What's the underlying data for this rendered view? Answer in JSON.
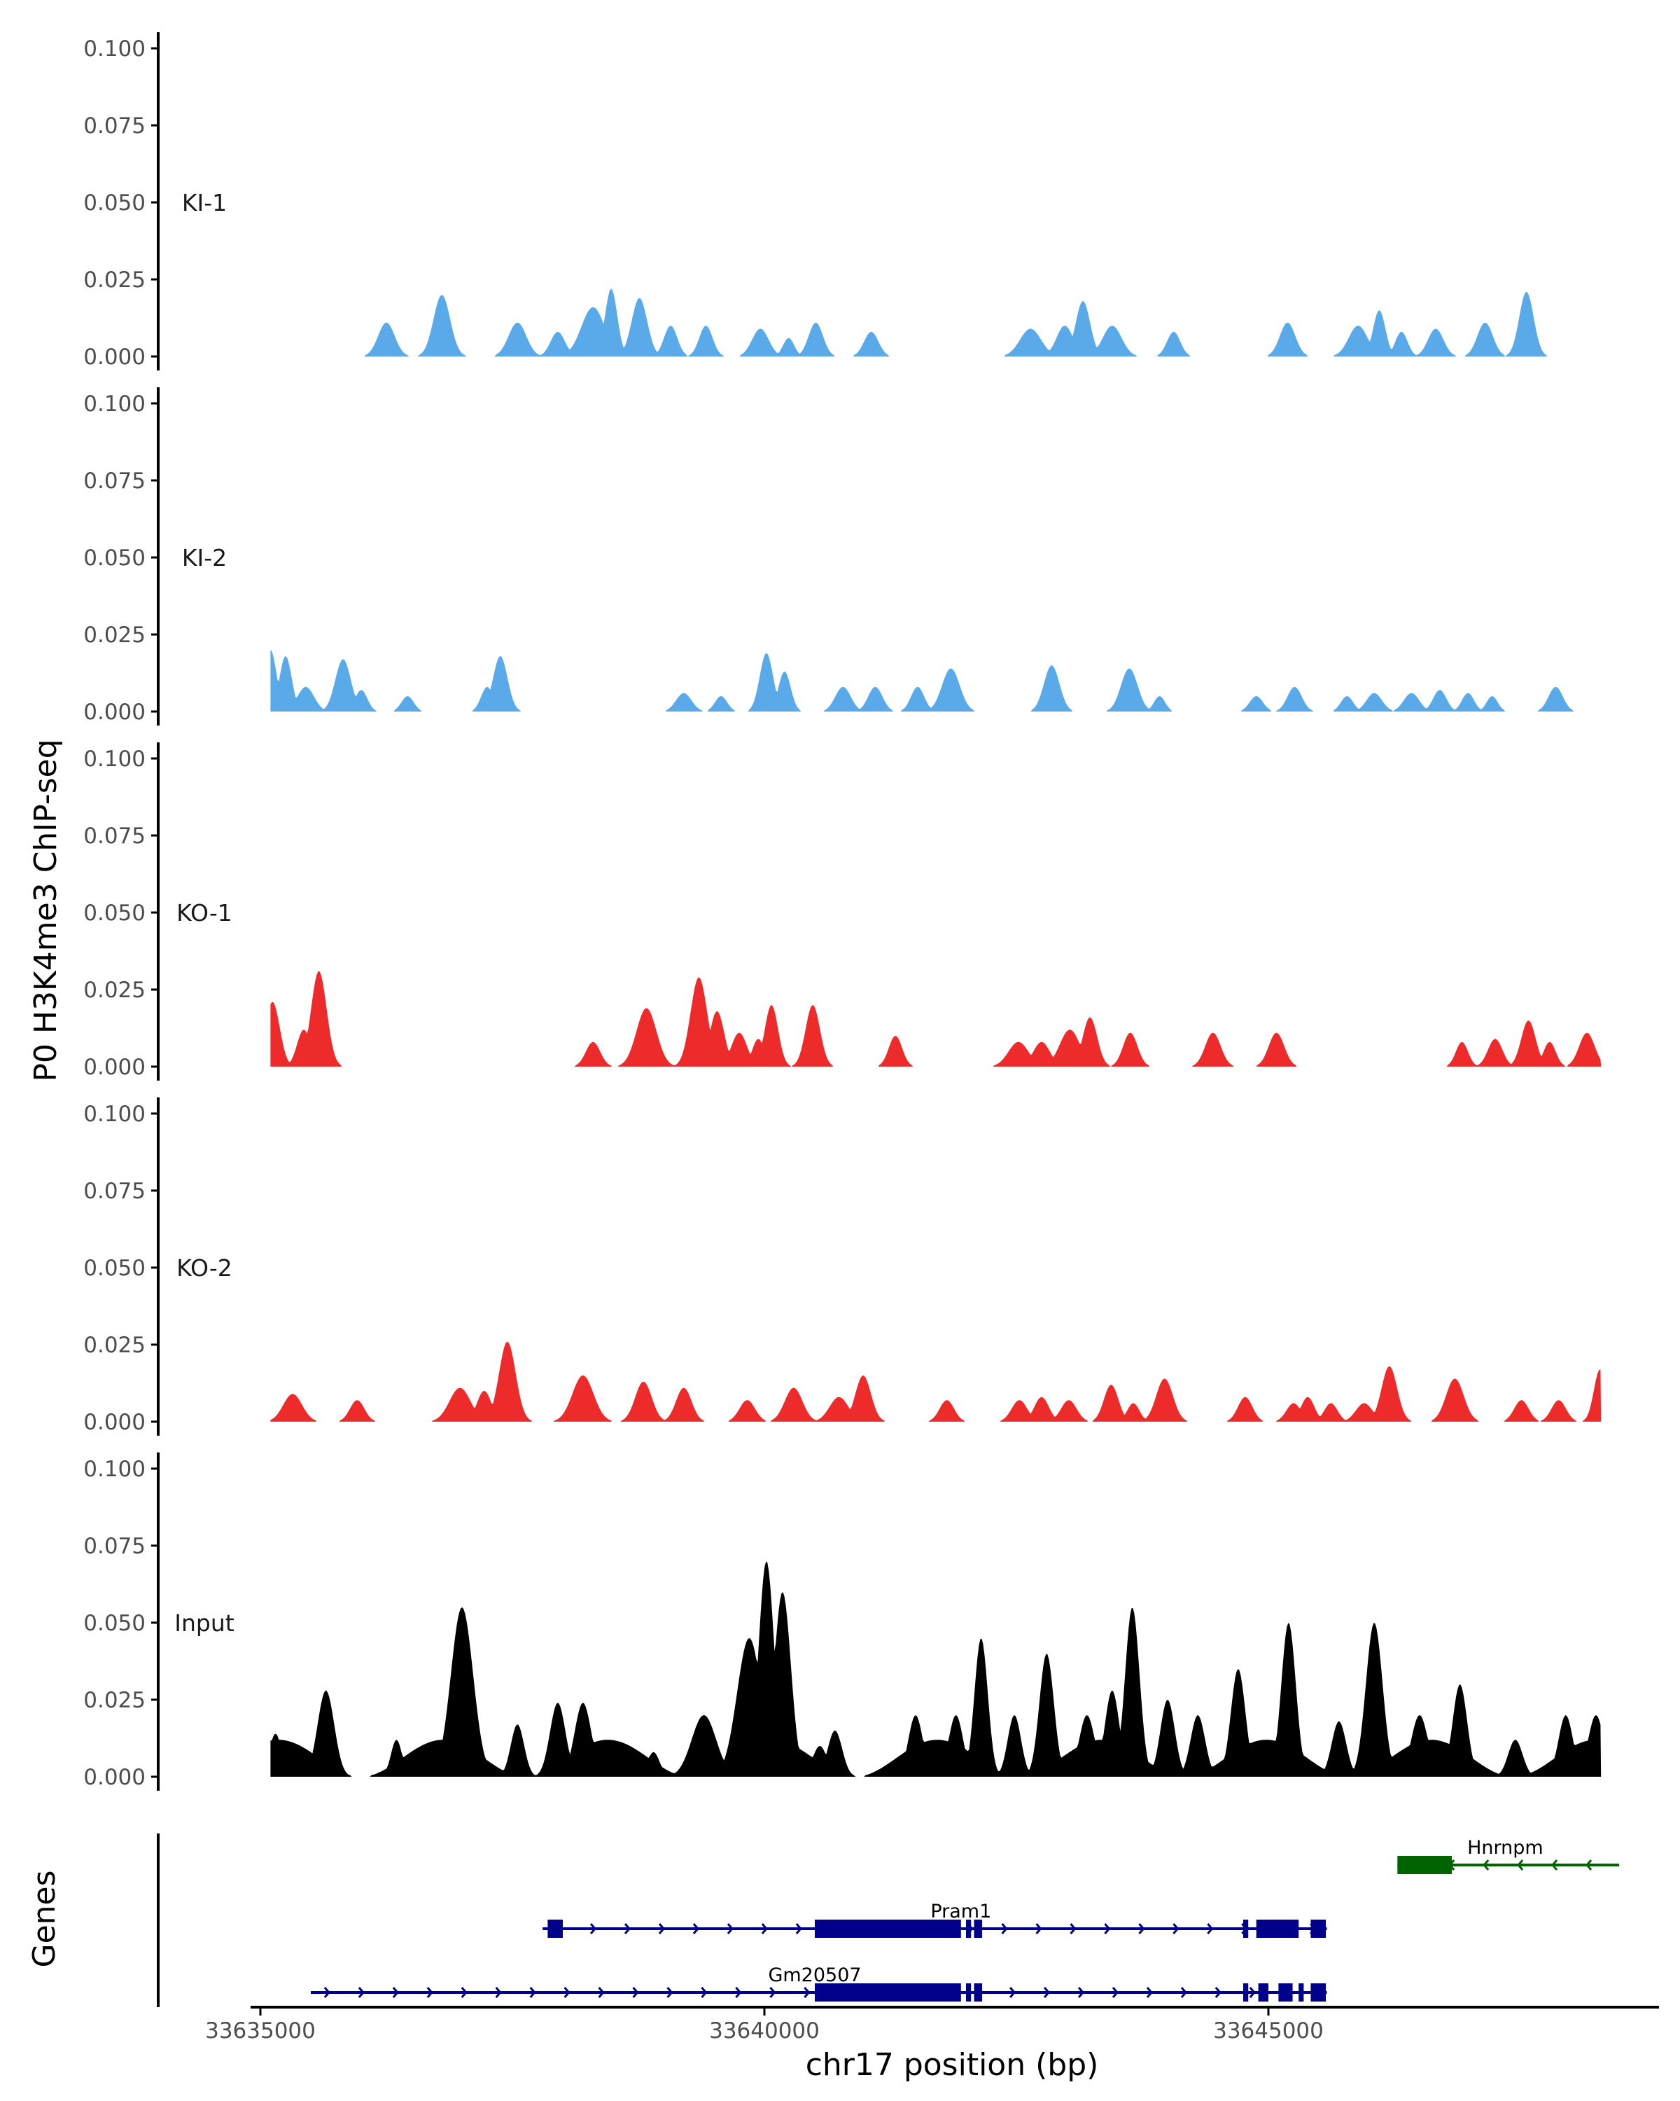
{
  "chart_data": {
    "type": "area",
    "ylabel": "P0 H3K4me3 ChIP-seq",
    "xlabel": "chr17 position (bp)",
    "xlim": [
      33634800,
      33648700
    ],
    "ylim": [
      0,
      0.105
    ],
    "yticks": [
      "0.000",
      "0.025",
      "0.050",
      "0.075",
      "0.100"
    ],
    "xticks": [
      {
        "value": 33635000,
        "label": "33635000"
      },
      {
        "value": 33640000,
        "label": "33640000"
      },
      {
        "value": 33645000,
        "label": "33645000"
      }
    ],
    "tracks": [
      {
        "name": "KI-1",
        "color": "#5aaaea",
        "peaks": [
          [
            33636250,
            150,
            0.011
          ],
          [
            33636800,
            150,
            0.02
          ],
          [
            33637550,
            160,
            0.011
          ],
          [
            33637950,
            130,
            0.008
          ],
          [
            33638300,
            210,
            0.016
          ],
          [
            33638480,
            110,
            0.022
          ],
          [
            33638760,
            140,
            0.019
          ],
          [
            33639070,
            120,
            0.01
          ],
          [
            33639420,
            120,
            0.01
          ],
          [
            33639960,
            150,
            0.009
          ],
          [
            33640240,
            100,
            0.006
          ],
          [
            33640510,
            130,
            0.011
          ],
          [
            33641060,
            130,
            0.008
          ],
          [
            33642640,
            190,
            0.009
          ],
          [
            33642980,
            150,
            0.01
          ],
          [
            33643160,
            130,
            0.018
          ],
          [
            33643450,
            170,
            0.01
          ],
          [
            33644060,
            120,
            0.008
          ],
          [
            33645190,
            140,
            0.011
          ],
          [
            33645890,
            170,
            0.01
          ],
          [
            33646100,
            110,
            0.015
          ],
          [
            33646320,
            110,
            0.008
          ],
          [
            33646660,
            140,
            0.009
          ],
          [
            33647150,
            140,
            0.011
          ],
          [
            33647560,
            130,
            0.021
          ]
        ]
      },
      {
        "name": "KI-2",
        "color": "#5aaaea",
        "peaks": [
          [
            33635100,
            110,
            0.02
          ],
          [
            33635250,
            110,
            0.018
          ],
          [
            33635450,
            150,
            0.008
          ],
          [
            33635820,
            140,
            0.017
          ],
          [
            33636000,
            110,
            0.007
          ],
          [
            33636460,
            110,
            0.005
          ],
          [
            33637380,
            130,
            0.018
          ],
          [
            33637250,
            110,
            0.008
          ],
          [
            33639200,
            140,
            0.006
          ],
          [
            33639570,
            110,
            0.005
          ],
          [
            33639980,
            100,
            0.008
          ],
          [
            33640020,
            120,
            0.019
          ],
          [
            33640200,
            110,
            0.013
          ],
          [
            33640780,
            140,
            0.008
          ],
          [
            33641100,
            130,
            0.008
          ],
          [
            33641520,
            120,
            0.008
          ],
          [
            33641850,
            160,
            0.014
          ],
          [
            33642850,
            140,
            0.015
          ],
          [
            33643620,
            150,
            0.014
          ],
          [
            33643920,
            100,
            0.005
          ],
          [
            33644880,
            120,
            0.005
          ],
          [
            33645260,
            130,
            0.008
          ],
          [
            33645780,
            110,
            0.005
          ],
          [
            33646050,
            140,
            0.006
          ],
          [
            33646420,
            140,
            0.006
          ],
          [
            33646700,
            120,
            0.007
          ],
          [
            33646980,
            110,
            0.006
          ],
          [
            33647220,
            100,
            0.005
          ],
          [
            33647850,
            130,
            0.008
          ],
          [
            33648400,
            90,
            0.003
          ]
        ]
      },
      {
        "name": "KO-1",
        "color": "#ee2b2b",
        "peaks": [
          [
            33635120,
            130,
            0.021
          ],
          [
            33635430,
            120,
            0.012
          ],
          [
            33635580,
            140,
            0.031
          ],
          [
            33638300,
            130,
            0.008
          ],
          [
            33638830,
            180,
            0.019
          ],
          [
            33639350,
            150,
            0.029
          ],
          [
            33639530,
            130,
            0.018
          ],
          [
            33639750,
            140,
            0.011
          ],
          [
            33639940,
            110,
            0.009
          ],
          [
            33640070,
            120,
            0.02
          ],
          [
            33640480,
            130,
            0.02
          ],
          [
            33641300,
            120,
            0.01
          ],
          [
            33642520,
            180,
            0.008
          ],
          [
            33642750,
            150,
            0.008
          ],
          [
            33643030,
            180,
            0.012
          ],
          [
            33643230,
            130,
            0.016
          ],
          [
            33643630,
            130,
            0.011
          ],
          [
            33644450,
            140,
            0.011
          ],
          [
            33645080,
            140,
            0.011
          ],
          [
            33646920,
            110,
            0.008
          ],
          [
            33647250,
            130,
            0.009
          ],
          [
            33647580,
            130,
            0.015
          ],
          [
            33647790,
            110,
            0.008
          ],
          [
            33648160,
            140,
            0.011
          ]
        ]
      },
      {
        "name": "KO-2",
        "color": "#ee2b2b",
        "peaks": [
          [
            33635320,
            170,
            0.009
          ],
          [
            33635960,
            130,
            0.007
          ],
          [
            33636980,
            190,
            0.011
          ],
          [
            33637220,
            130,
            0.01
          ],
          [
            33637450,
            150,
            0.026
          ],
          [
            33638200,
            190,
            0.015
          ],
          [
            33638800,
            150,
            0.013
          ],
          [
            33639200,
            140,
            0.011
          ],
          [
            33639830,
            140,
            0.007
          ],
          [
            33640290,
            160,
            0.011
          ],
          [
            33640740,
            170,
            0.008
          ],
          [
            33640980,
            140,
            0.015
          ],
          [
            33641810,
            130,
            0.007
          ],
          [
            33642530,
            140,
            0.007
          ],
          [
            33642750,
            130,
            0.008
          ],
          [
            33643020,
            140,
            0.007
          ],
          [
            33643440,
            130,
            0.012
          ],
          [
            33643660,
            110,
            0.006
          ],
          [
            33643970,
            150,
            0.014
          ],
          [
            33644770,
            130,
            0.008
          ],
          [
            33645250,
            130,
            0.006
          ],
          [
            33645390,
            120,
            0.008
          ],
          [
            33645620,
            120,
            0.006
          ],
          [
            33645950,
            150,
            0.006
          ],
          [
            33646200,
            140,
            0.018
          ],
          [
            33646850,
            160,
            0.014
          ],
          [
            33647510,
            130,
            0.007
          ],
          [
            33647880,
            130,
            0.007
          ],
          [
            33648290,
            110,
            0.017
          ]
        ]
      },
      {
        "name": "Input",
        "color": "#000000",
        "baseline": 0.012,
        "peaks": [
          [
            33635150,
            110,
            0.014
          ],
          [
            33635650,
            150,
            0.028
          ],
          [
            33636350,
            100,
            0.012
          ],
          [
            33637000,
            200,
            0.055
          ],
          [
            33637550,
            120,
            0.017
          ],
          [
            33637950,
            140,
            0.024
          ],
          [
            33638200,
            150,
            0.024
          ],
          [
            33638600,
            120,
            0.01
          ],
          [
            33638900,
            110,
            0.008
          ],
          [
            33639400,
            220,
            0.02
          ],
          [
            33639850,
            220,
            0.045
          ],
          [
            33640020,
            140,
            0.07
          ],
          [
            33640180,
            150,
            0.06
          ],
          [
            33640550,
            130,
            0.01
          ],
          [
            33640700,
            130,
            0.015
          ],
          [
            33641500,
            130,
            0.02
          ],
          [
            33641900,
            130,
            0.02
          ],
          [
            33642150,
            120,
            0.045
          ],
          [
            33642480,
            120,
            0.02
          ],
          [
            33642800,
            130,
            0.04
          ],
          [
            33643200,
            140,
            0.02
          ],
          [
            33643450,
            130,
            0.028
          ],
          [
            33643650,
            130,
            0.055
          ],
          [
            33644000,
            130,
            0.025
          ],
          [
            33644300,
            130,
            0.02
          ],
          [
            33644700,
            130,
            0.035
          ],
          [
            33645200,
            130,
            0.05
          ],
          [
            33645700,
            130,
            0.018
          ],
          [
            33646050,
            150,
            0.05
          ],
          [
            33646500,
            150,
            0.02
          ],
          [
            33646900,
            130,
            0.03
          ],
          [
            33647450,
            130,
            0.012
          ],
          [
            33647950,
            130,
            0.02
          ],
          [
            33648250,
            140,
            0.02
          ]
        ]
      }
    ],
    "genes_panel": {
      "title": "Genes",
      "genes": [
        {
          "name": "Hnrnpm",
          "color": "#006400",
          "strand": "-",
          "start": 33646280,
          "end": 33648480,
          "blocks": [
            [
              33646280,
              33646820
            ]
          ]
        },
        {
          "name": "Pram1",
          "color": "#00008b",
          "strand": "+",
          "start": 33637800,
          "end": 33645580,
          "blocks": [
            [
              33637850,
              33638000
            ],
            [
              33640500,
              33641950
            ],
            [
              33642000,
              33642050
            ],
            [
              33642080,
              33642160
            ],
            [
              33644750,
              33644800
            ],
            [
              33644880,
              33645300
            ],
            [
              33645420,
              33645570
            ]
          ]
        },
        {
          "name": "Gm20507",
          "color": "#00008b",
          "strand": "+",
          "start": 33635500,
          "end": 33645580,
          "blocks": [
            [
              33640500,
              33641950
            ],
            [
              33642000,
              33642050
            ],
            [
              33642080,
              33642160
            ],
            [
              33644750,
              33644800
            ],
            [
              33644900,
              33645000
            ],
            [
              33645100,
              33645240
            ],
            [
              33645300,
              33645350
            ],
            [
              33645420,
              33645570
            ]
          ]
        }
      ]
    }
  }
}
